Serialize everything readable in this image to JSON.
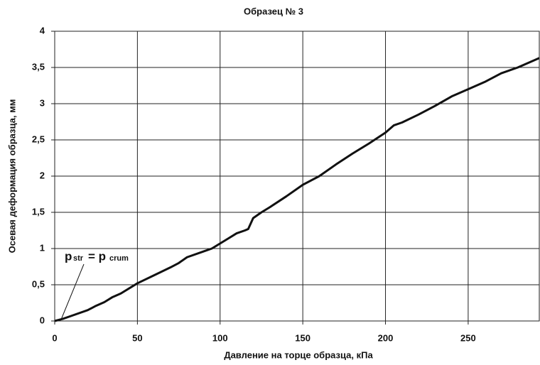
{
  "chart_data": {
    "type": "line",
    "title": "Образец № 3",
    "x_label": "Давление на торце образца, кПа",
    "y_label": "Осевая деформация образца, мм",
    "annotation": {
      "p1": "p",
      "sub1": "str",
      "p2": "= p",
      "sub2": "crum"
    },
    "x": [
      0,
      5,
      10,
      20,
      25,
      30,
      35,
      40,
      50,
      60,
      70,
      75,
      80,
      90,
      95,
      100,
      105,
      110,
      115,
      117,
      120,
      125,
      130,
      140,
      150,
      160,
      170,
      180,
      190,
      200,
      205,
      210,
      220,
      230,
      240,
      250,
      260,
      270,
      280,
      293
    ],
    "series": [
      {
        "name": "Образец № 3",
        "color": "#111111",
        "values": [
          0,
          0.03,
          0.07,
          0.15,
          0.21,
          0.26,
          0.33,
          0.38,
          0.52,
          0.63,
          0.74,
          0.8,
          0.88,
          0.96,
          1.0,
          1.07,
          1.14,
          1.21,
          1.25,
          1.27,
          1.42,
          1.5,
          1.57,
          1.72,
          1.88,
          2.0,
          2.16,
          2.31,
          2.45,
          2.6,
          2.7,
          2.74,
          2.85,
          2.97,
          3.1,
          3.2,
          3.3,
          3.42,
          3.5,
          3.63
        ]
      }
    ],
    "xlim": [
      0,
      293
    ],
    "xticks": [
      0,
      50,
      100,
      150,
      200,
      250
    ],
    "ylim": [
      0,
      4
    ],
    "yticks": [
      0,
      {
        "value": 0.5,
        "label": "0,5"
      },
      1,
      {
        "value": 1.5,
        "label": "1,5"
      },
      2,
      {
        "value": 2.5,
        "label": "2,5"
      },
      3,
      {
        "value": 3.5,
        "label": "3,5"
      },
      4
    ],
    "grid": true
  }
}
